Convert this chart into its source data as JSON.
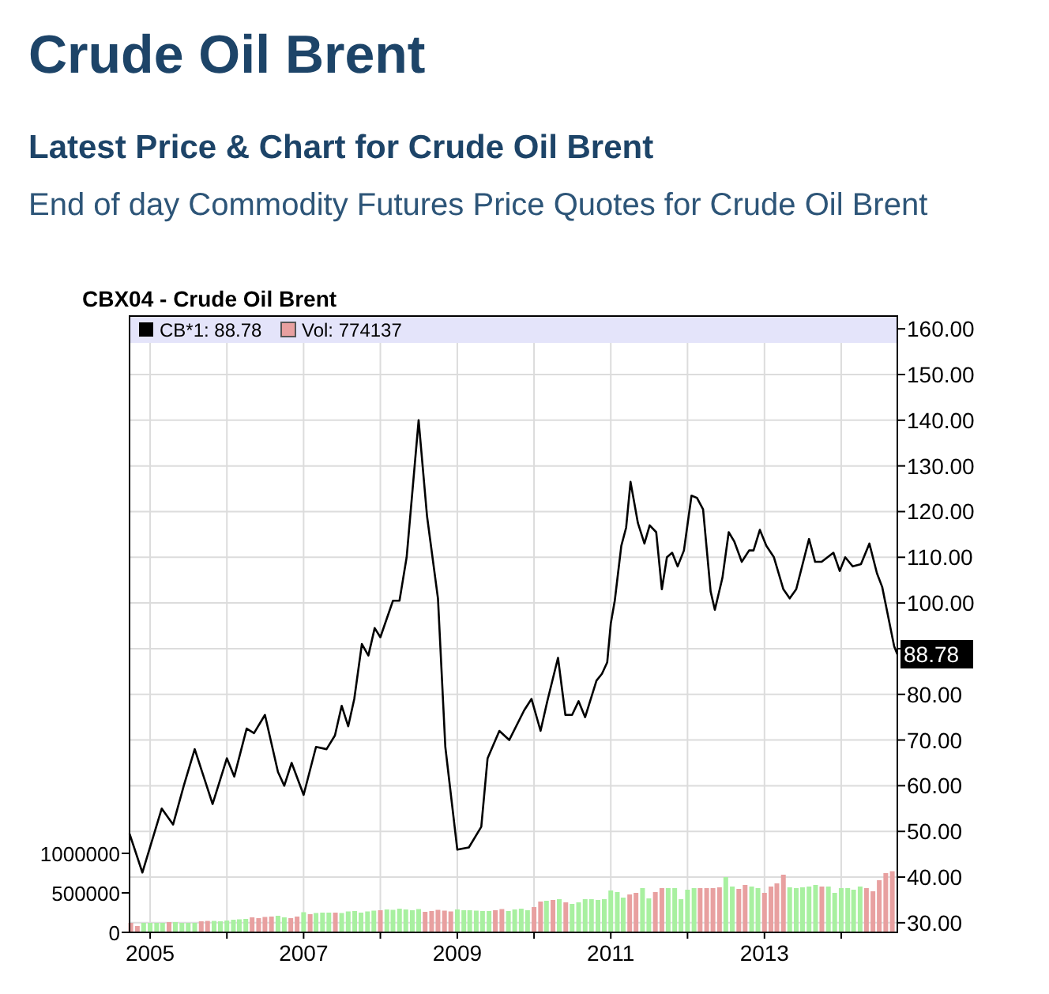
{
  "chart_data": {
    "type": "line",
    "title": "Crude Oil Brent",
    "subtitle": "Latest Price & Chart for Crude Oil Brent",
    "annotations": [
      "End of day Commodity Futures Price Quotes for Crude Oil Brent",
      "CBX04 - Crude Oil Brent",
      {
        "text": "88.78",
        "x": "2014-09-25",
        "y": 88.78
      }
    ],
    "xlim": [
      "2004-09-25",
      "2014-09-25"
    ],
    "xticks": [
      {
        "value": "2005-01-01",
        "label": "2005"
      },
      {
        "value": "2006-01-01",
        "label": null
      },
      {
        "value": "2007-01-01",
        "label": "2007"
      },
      {
        "value": "2008-01-01",
        "label": null
      },
      {
        "value": "2009-01-01",
        "label": "2009"
      },
      {
        "value": "2010-01-01",
        "label": null
      },
      {
        "value": "2011-01-01",
        "label": "2011"
      },
      {
        "value": "2012-01-01",
        "label": null
      },
      {
        "value": "2013-01-01",
        "label": "2013"
      },
      {
        "value": "2014-01-01",
        "label": null
      }
    ],
    "ylim": [
      27.9,
      162.8
    ],
    "yticks": [
      {
        "value": 30,
        "label": "30.00"
      },
      {
        "value": 40,
        "label": "40.00"
      },
      {
        "value": 50,
        "label": "50.00"
      },
      {
        "value": 60,
        "label": "60.00"
      },
      {
        "value": 70,
        "label": "70.00"
      },
      {
        "value": 80,
        "label": "80.00"
      },
      {
        "value": 90,
        "label": null
      },
      {
        "value": 100,
        "label": "100.00"
      },
      {
        "value": 110,
        "label": "110.00"
      },
      {
        "value": 120,
        "label": "120.00"
      },
      {
        "value": 130,
        "label": "130.00"
      },
      {
        "value": 140,
        "label": "140.00"
      },
      {
        "value": 150,
        "label": "150.00"
      },
      {
        "value": 160,
        "label": "160.00"
      }
    ],
    "y2lim": [
      0,
      7800000
    ],
    "y2ticks": [
      0,
      500000,
      1000000
    ],
    "grid": true,
    "legend": "top left",
    "series": [
      {
        "name": "CB*1: 88.78",
        "color": "#000000",
        "x": [
          "2004-09-25",
          "2004-11-25",
          "2005-02-25",
          "2005-04-20",
          "2005-06-10",
          "2005-08-01",
          "2005-10-25",
          "2006-01-01",
          "2006-02-05",
          "2006-04-05",
          "2006-05-10",
          "2006-07-01",
          "2006-09-01",
          "2006-10-01",
          "2006-11-05",
          "2007-01-01",
          "2007-03-01",
          "2007-04-20",
          "2007-05-30",
          "2007-07-01",
          "2007-08-01",
          "2007-08-30",
          "2007-10-05",
          "2007-11-05",
          "2007-12-05",
          "2008-01-01",
          "2008-03-01",
          "2008-04-01",
          "2008-05-05",
          "2008-07-01",
          "2008-08-10",
          "2008-10-01",
          "2008-11-05",
          "2009-01-01",
          "2009-02-25",
          "2009-04-25",
          "2009-05-25",
          "2009-07-20",
          "2009-09-05",
          "2009-11-15",
          "2009-12-20",
          "2010-02-01",
          "2010-03-05",
          "2010-04-25",
          "2010-05-30",
          "2010-07-01",
          "2010-08-01",
          "2010-09-01",
          "2010-10-25",
          "2010-11-20",
          "2010-12-15",
          "2011-01-01",
          "2011-01-20",
          "2011-02-20",
          "2011-03-15",
          "2011-04-05",
          "2011-05-10",
          "2011-06-10",
          "2011-07-05",
          "2011-08-05",
          "2011-09-01",
          "2011-09-25",
          "2011-10-20",
          "2011-11-15",
          "2011-12-15",
          "2012-01-20",
          "2012-02-15",
          "2012-03-15",
          "2012-04-20",
          "2012-05-10",
          "2012-06-15",
          "2012-07-15",
          "2012-08-10",
          "2012-09-15",
          "2012-10-20",
          "2012-11-10",
          "2012-12-10",
          "2013-01-10",
          "2013-02-15",
          "2013-04-01",
          "2013-05-01",
          "2013-06-01",
          "2013-08-01",
          "2013-08-30",
          "2013-09-30",
          "2013-11-25",
          "2013-12-25",
          "2014-01-20",
          "2014-02-25",
          "2014-04-05",
          "2014-05-15",
          "2014-06-20",
          "2014-07-15",
          "2014-09-10",
          "2014-09-25"
        ],
        "values": [
          49.5,
          41,
          55,
          51.5,
          60,
          68,
          56,
          66,
          62,
          72.5,
          71.5,
          75.5,
          63,
          60,
          65,
          58,
          68.5,
          68,
          71,
          77.5,
          73,
          79,
          91,
          88.5,
          94.5,
          92.5,
          100.5,
          100.5,
          110,
          140,
          119,
          101,
          68.5,
          46,
          46.5,
          51,
          66,
          72,
          70,
          76.5,
          79,
          72,
          78.5,
          88,
          75.5,
          75.5,
          78.5,
          75,
          83,
          84.5,
          87,
          95.5,
          100.5,
          112.5,
          116.5,
          126.5,
          117.5,
          113,
          117,
          115.5,
          103,
          110,
          111,
          108,
          111.5,
          123.5,
          123,
          120.5,
          102.5,
          98.5,
          105.5,
          115.5,
          113.5,
          109,
          111.5,
          111.5,
          116,
          112.5,
          110,
          103,
          101,
          103,
          114,
          109,
          109,
          111,
          107,
          110,
          108,
          108.5,
          113,
          106.5,
          103.5,
          90.5,
          88.78
        ]
      },
      {
        "name": "Vol: 774137",
        "type": "bar",
        "axis": "y2",
        "color": "#e8a0a0",
        "x": [
          "2004-10",
          "2004-11",
          "2004-12",
          "2005-01",
          "2005-02",
          "2005-03",
          "2005-04",
          "2005-05",
          "2005-06",
          "2005-07",
          "2005-08",
          "2005-09",
          "2005-10",
          "2005-11",
          "2005-12",
          "2006-01",
          "2006-02",
          "2006-03",
          "2006-04",
          "2006-05",
          "2006-06",
          "2006-07",
          "2006-08",
          "2006-09",
          "2006-10",
          "2006-11",
          "2006-12",
          "2007-01",
          "2007-02",
          "2007-03",
          "2007-04",
          "2007-05",
          "2007-06",
          "2007-07",
          "2007-08",
          "2007-09",
          "2007-10",
          "2007-11",
          "2007-12",
          "2008-01",
          "2008-02",
          "2008-03",
          "2008-04",
          "2008-05",
          "2008-06",
          "2008-07",
          "2008-08",
          "2008-09",
          "2008-10",
          "2008-11",
          "2008-12",
          "2009-01",
          "2009-02",
          "2009-03",
          "2009-04",
          "2009-05",
          "2009-06",
          "2009-07",
          "2009-08",
          "2009-09",
          "2009-10",
          "2009-11",
          "2009-12",
          "2010-01",
          "2010-02",
          "2010-03",
          "2010-04",
          "2010-05",
          "2010-06",
          "2010-07",
          "2010-08",
          "2010-09",
          "2010-10",
          "2010-11",
          "2010-12",
          "2011-01",
          "2011-02",
          "2011-03",
          "2011-04",
          "2011-05",
          "2011-06",
          "2011-07",
          "2011-08",
          "2011-09",
          "2011-10",
          "2011-11",
          "2011-12",
          "2012-01",
          "2012-02",
          "2012-03",
          "2012-04",
          "2012-05",
          "2012-06",
          "2012-07",
          "2012-08",
          "2012-09",
          "2012-10",
          "2012-11",
          "2012-12",
          "2013-01",
          "2013-02",
          "2013-03",
          "2013-04",
          "2013-05",
          "2013-06",
          "2013-07",
          "2013-08",
          "2013-09",
          "2013-10",
          "2013-11",
          "2013-12",
          "2014-01",
          "2014-02",
          "2014-03",
          "2014-04",
          "2014-05",
          "2014-06",
          "2014-07",
          "2014-08",
          "2014-09"
        ],
        "values": [
          120000,
          80000,
          120000,
          120000,
          120000,
          120000,
          130000,
          130000,
          120000,
          120000,
          120000,
          140000,
          145000,
          145000,
          140000,
          150000,
          160000,
          165000,
          170000,
          190000,
          180000,
          195000,
          200000,
          210000,
          190000,
          180000,
          200000,
          255000,
          230000,
          245000,
          250000,
          250000,
          250000,
          245000,
          265000,
          270000,
          250000,
          265000,
          275000,
          280000,
          290000,
          285000,
          300000,
          290000,
          280000,
          295000,
          260000,
          270000,
          285000,
          275000,
          265000,
          290000,
          280000,
          280000,
          275000,
          270000,
          270000,
          280000,
          295000,
          270000,
          290000,
          300000,
          280000,
          320000,
          390000,
          400000,
          410000,
          420000,
          380000,
          360000,
          380000,
          420000,
          420000,
          410000,
          420000,
          530000,
          510000,
          440000,
          480000,
          500000,
          560000,
          430000,
          510000,
          560000,
          560000,
          560000,
          420000,
          540000,
          560000,
          560000,
          560000,
          560000,
          570000,
          700000,
          580000,
          550000,
          600000,
          580000,
          560000,
          500000,
          580000,
          620000,
          730000,
          570000,
          560000,
          570000,
          580000,
          600000,
          580000,
          580000,
          500000,
          560000,
          560000,
          540000,
          580000,
          560000,
          520000,
          660000,
          750000,
          774137
        ],
        "colors": [
          "#e8a0a0",
          "#e8a0a0",
          "#a8f0a0",
          "#a8f0a0",
          "#a8f0a0",
          "#a8f0a0",
          "#e8a0a0",
          "#a8f0a0",
          "#a8f0a0",
          "#a8f0a0",
          "#a8f0a0",
          "#e8a0a0",
          "#e8a0a0",
          "#a8f0a0",
          "#a8f0a0",
          "#a8f0a0",
          "#a8f0a0",
          "#a8f0a0",
          "#a8f0a0",
          "#e8a0a0",
          "#e8a0a0",
          "#e8a0a0",
          "#e8a0a0",
          "#a8f0a0",
          "#a8f0a0",
          "#e8a0a0",
          "#e8a0a0",
          "#a8f0a0",
          "#e8a0a0",
          "#a8f0a0",
          "#a8f0a0",
          "#a8f0a0",
          "#e8a0a0",
          "#a8f0a0",
          "#a8f0a0",
          "#a8f0a0",
          "#a8f0a0",
          "#a8f0a0",
          "#a8f0a0",
          "#e8a0a0",
          "#a8f0a0",
          "#a8f0a0",
          "#a8f0a0",
          "#a8f0a0",
          "#a8f0a0",
          "#a8f0a0",
          "#e8a0a0",
          "#e8a0a0",
          "#e8a0a0",
          "#e8a0a0",
          "#e8a0a0",
          "#a8f0a0",
          "#a8f0a0",
          "#a8f0a0",
          "#a8f0a0",
          "#a8f0a0",
          "#a8f0a0",
          "#e8a0a0",
          "#e8a0a0",
          "#a8f0a0",
          "#a8f0a0",
          "#a8f0a0",
          "#a8f0a0",
          "#e8a0a0",
          "#e8a0a0",
          "#a8f0a0",
          "#e8a0a0",
          "#a8f0a0",
          "#e8a0a0",
          "#a8f0a0",
          "#a8f0a0",
          "#a8f0a0",
          "#a8f0a0",
          "#a8f0a0",
          "#a8f0a0",
          "#a8f0a0",
          "#a8f0a0",
          "#a8f0a0",
          "#e8a0a0",
          "#e8a0a0",
          "#a8f0a0",
          "#a8f0a0",
          "#e8a0a0",
          "#e8a0a0",
          "#a8f0a0",
          "#a8f0a0",
          "#a8f0a0",
          "#a8f0a0",
          "#a8f0a0",
          "#e8a0a0",
          "#e8a0a0",
          "#e8a0a0",
          "#e8a0a0",
          "#a8f0a0",
          "#a8f0a0",
          "#e8a0a0",
          "#e8a0a0",
          "#a8f0a0",
          "#a8f0a0",
          "#e8a0a0",
          "#e8a0a0",
          "#e8a0a0",
          "#e8a0a0",
          "#a8f0a0",
          "#a8f0a0",
          "#a8f0a0",
          "#a8f0a0",
          "#a8f0a0",
          "#e8a0a0",
          "#a8f0a0",
          "#a8f0a0",
          "#a8f0a0",
          "#a8f0a0",
          "#a8f0a0",
          "#a8f0a0",
          "#e8a0a0",
          "#e8a0a0",
          "#e8a0a0",
          "#e8a0a0",
          "#e8a0a0"
        ]
      }
    ]
  }
}
